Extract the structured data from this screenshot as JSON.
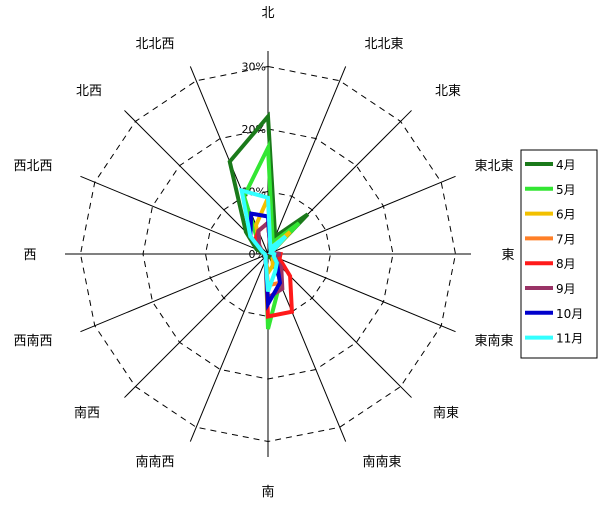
{
  "chart_data": {
    "type": "radar",
    "title": "",
    "directions": [
      "北",
      "北北東",
      "北東",
      "東北東",
      "東",
      "東南東",
      "南東",
      "南南東",
      "南",
      "南南西",
      "南西",
      "西南西",
      "西",
      "西北西",
      "北西",
      "北北西"
    ],
    "r_ticks": [
      0,
      10,
      20,
      30
    ],
    "r_tick_labels": [
      "0%",
      "10%",
      "20%",
      "30%"
    ],
    "r_max": 40,
    "grid": "dashed-polygon",
    "legend_position": "right",
    "series": [
      {
        "name": "4月",
        "color": "#1a7a1a",
        "values": [
          22,
          3,
          9,
          0.5,
          0.5,
          0.5,
          0.5,
          0.5,
          0.5,
          0.5,
          0.5,
          0.5,
          0.5,
          2,
          5,
          16
        ]
      },
      {
        "name": "5月",
        "color": "#33e633",
        "values": [
          17,
          2,
          7,
          0.5,
          2,
          1,
          2,
          5,
          12,
          1,
          0.5,
          0.5,
          0.5,
          1,
          2,
          10
        ]
      },
      {
        "name": "6月",
        "color": "#f2c000",
        "values": [
          9,
          1,
          5,
          0.5,
          1,
          1,
          1,
          2,
          3,
          1,
          0.5,
          0.5,
          0.5,
          1,
          2,
          5
        ]
      },
      {
        "name": "7月",
        "color": "#ff7f27",
        "values": [
          5,
          1,
          3,
          0.5,
          1,
          1,
          3,
          5,
          5,
          1,
          0.5,
          0.5,
          0.5,
          1,
          2,
          4
        ]
      },
      {
        "name": "8月",
        "color": "#ff1a1a",
        "values": [
          5,
          1,
          3,
          0.5,
          2,
          2,
          5,
          10,
          10,
          1,
          0.5,
          0.5,
          0.5,
          1,
          3,
          4
        ]
      },
      {
        "name": "9月",
        "color": "#993366",
        "values": [
          5,
          1,
          3,
          0.5,
          2,
          1,
          3,
          6,
          7,
          1,
          0.5,
          0.5,
          0.5,
          1,
          2,
          4
        ]
      },
      {
        "name": "10月",
        "color": "#0000cc",
        "values": [
          6,
          1,
          3,
          0.5,
          1,
          1,
          2,
          5,
          8,
          1,
          0.5,
          0.5,
          0.5,
          1,
          4,
          7
        ]
      },
      {
        "name": "11月",
        "color": "#33ffff",
        "values": [
          9,
          1,
          4,
          0.5,
          1,
          1,
          2,
          3,
          6,
          1,
          0.5,
          0.5,
          0.5,
          1,
          4,
          11
        ]
      }
    ]
  }
}
